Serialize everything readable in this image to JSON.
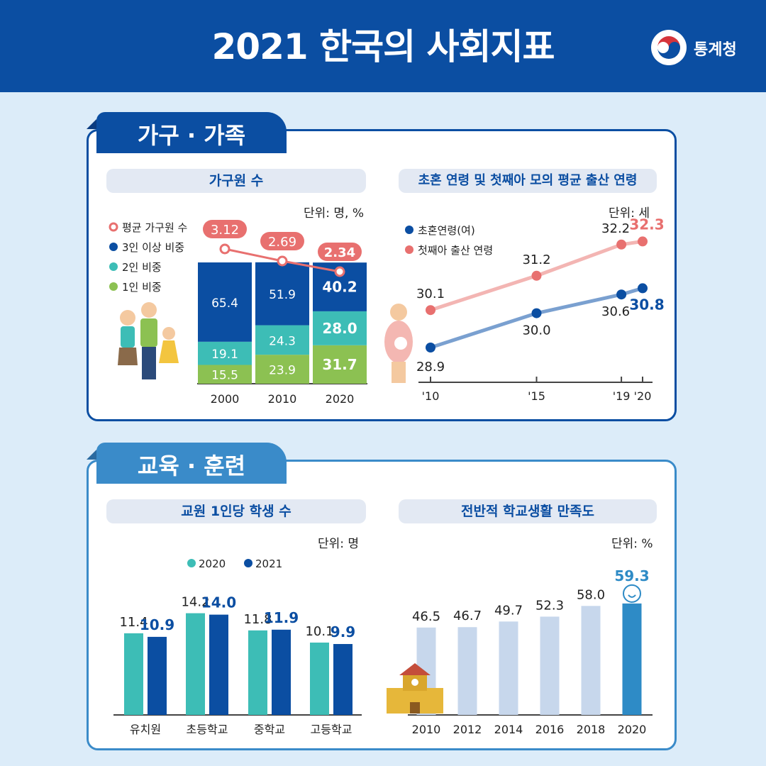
{
  "header": {
    "title": "2021 한국의 사회지표",
    "org": "통계청",
    "colors": {
      "bg": "#0b4ea2"
    }
  },
  "sections": {
    "household": {
      "tab": "가구 · 가족"
    },
    "education": {
      "tab": "교육 · 훈련"
    }
  },
  "charts": {
    "household_members": {
      "subtitle": "가구원 수",
      "unit": "단위: 명, %"
    },
    "marriage_age": {
      "subtitle": "초혼 연령 및 첫째아 모의 평균 출산 연령",
      "unit": "단위: 세"
    },
    "students_per_teacher": {
      "subtitle": "교원 1인당 학생 수",
      "unit": "단위: 명"
    },
    "school_satisfaction": {
      "subtitle": "전반적 학교생활 만족도",
      "unit": "단위: %"
    }
  },
  "chart_data": [
    {
      "id": "household_members",
      "type": "bar",
      "stacked": true,
      "categories": [
        "2000",
        "2010",
        "2020"
      ],
      "series": [
        {
          "name": "1인 비중",
          "values": [
            15.5,
            23.9,
            31.7
          ],
          "color": "#8cc152"
        },
        {
          "name": "2인 비중",
          "values": [
            19.1,
            24.3,
            28.0
          ],
          "color": "#3dbdb6"
        },
        {
          "name": "3인 이상 비중",
          "values": [
            65.4,
            51.9,
            40.2
          ],
          "color": "#0b4ea2"
        }
      ],
      "line": {
        "name": "평균 가구원 수",
        "values": [
          3.12,
          2.69,
          2.34
        ],
        "color": "#e8706f"
      },
      "legend": [
        "평균 가구원 수",
        "3인 이상 비중",
        "2인 비중",
        "1인 비중"
      ],
      "legend_position": "left"
    },
    {
      "id": "marriage_age",
      "type": "line",
      "x": [
        "'10",
        "'15",
        "'19",
        "'20"
      ],
      "x_values": [
        2010,
        2015,
        2019,
        2020
      ],
      "series": [
        {
          "name": "초혼연령(여)",
          "values": [
            28.9,
            30.0,
            30.6,
            30.8
          ],
          "color": "#0b4ea2"
        },
        {
          "name": "첫째아 출산 연령",
          "values": [
            30.1,
            31.2,
            32.2,
            32.3
          ],
          "color": "#e8706f"
        }
      ],
      "legend_position": "top-left"
    },
    {
      "id": "students_per_teacher",
      "type": "bar",
      "categories": [
        "유치원",
        "초등학교",
        "중학교",
        "고등학교"
      ],
      "series": [
        {
          "name": "2020",
          "values": [
            11.4,
            14.2,
            11.8,
            10.1
          ],
          "color": "#3dbdb6"
        },
        {
          "name": "2021",
          "values": [
            10.9,
            14.0,
            11.9,
            9.9
          ],
          "color": "#0b4ea2"
        }
      ],
      "legend_position": "top"
    },
    {
      "id": "school_satisfaction",
      "type": "bar",
      "categories": [
        "2010",
        "2012",
        "2014",
        "2016",
        "2018",
        "2020"
      ],
      "values": [
        46.5,
        46.7,
        49.7,
        52.3,
        58.0,
        59.3
      ],
      "colors": {
        "default": "#c7d7ec",
        "highlight": "#2e8bc6"
      }
    }
  ]
}
